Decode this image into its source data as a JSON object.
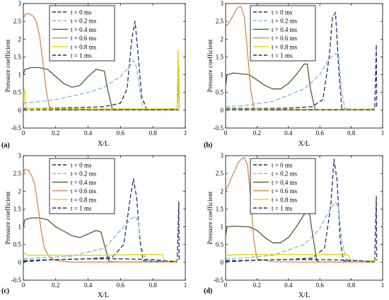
{
  "figure": {
    "legend_entries": [
      "t = 0 ms",
      "t = 0.2 ms",
      "t = 0.4 ms",
      "t = 0.6 ms",
      "t = 0.8 ms",
      "t = 1 ms"
    ]
  },
  "chart_data": [
    {
      "type": "line",
      "panel_label": "(a)",
      "xlabel": "X/L",
      "ylabel": "Pressure coefficient",
      "xlim": [
        0,
        1
      ],
      "ylim": [
        -0.5,
        3
      ],
      "xticks": [
        "0",
        "0.2",
        "0.4",
        "0.6",
        "0.8",
        "1"
      ],
      "yticks": [
        "-0.5",
        "0",
        "0.5",
        "1",
        "1.5",
        "2",
        "2.5",
        "3"
      ],
      "grid": false,
      "legend": "top-left",
      "series": [
        {
          "name": "t = 0 ms",
          "color": "#1f2f6b",
          "dash": "dashed",
          "x": [
            0,
            0.1,
            0.3,
            0.5,
            0.6,
            0.64,
            0.67,
            0.69,
            0.71,
            0.73,
            0.76,
            0.8,
            0.9,
            0.95,
            0.96,
            0.962
          ],
          "y": [
            0.05,
            0.05,
            0.07,
            0.1,
            0.2,
            0.6,
            2.0,
            2.5,
            1.5,
            0.4,
            0.03,
            0.03,
            0.03,
            0.05,
            1.0,
            0.05
          ]
        },
        {
          "name": "t = 0.2 ms",
          "color": "#7fb8d4",
          "dash": "dashed",
          "x": [
            0,
            0.05,
            0.2,
            0.4,
            0.5,
            0.6,
            0.65,
            0.68,
            0.7,
            0.72,
            0.74,
            0.8,
            0.9,
            0.95,
            0.96,
            0.962
          ],
          "y": [
            0.2,
            0.22,
            0.3,
            0.5,
            0.65,
            0.95,
            1.2,
            1.4,
            1.2,
            0.5,
            0.03,
            0.03,
            0.03,
            0.05,
            1.2,
            0.05
          ]
        },
        {
          "name": "t = 0.4 ms",
          "color": "#4d5e2f",
          "dash": "solid",
          "x": [
            0,
            0.01,
            0.05,
            0.1,
            0.15,
            0.2,
            0.25,
            0.3,
            0.35,
            0.4,
            0.45,
            0.5,
            0.52,
            0.55,
            0.6,
            0.8,
            0.95,
            0.962
          ],
          "y": [
            1.0,
            1.15,
            1.2,
            1.2,
            1.15,
            0.95,
            0.75,
            0.65,
            0.7,
            0.95,
            1.15,
            1.1,
            0.6,
            0.02,
            0.01,
            0.01,
            0.01,
            0.01
          ]
        },
        {
          "name": "t = 0.6 ms",
          "color": "#d2884e",
          "dash": "solid",
          "x": [
            0,
            0.01,
            0.03,
            0.06,
            0.08,
            0.1,
            0.12,
            0.14,
            0.16,
            0.2,
            0.3,
            0.5,
            0.7,
            0.9,
            0.95
          ],
          "y": [
            2.55,
            2.7,
            2.72,
            2.65,
            2.5,
            2.1,
            1.4,
            0.6,
            0.1,
            0.02,
            0.01,
            0.01,
            0.01,
            0.01,
            0.01
          ]
        },
        {
          "name": "t = 0.8 ms",
          "color": "#e5d400",
          "dash": "solid",
          "x": [
            0,
            0.005,
            0.01,
            0.02,
            0.1,
            0.3,
            0.5,
            0.7,
            0.9,
            0.95,
            0.955,
            0.962
          ],
          "y": [
            0.25,
            0.6,
            0.2,
            0.05,
            0.04,
            0.04,
            0.04,
            0.04,
            0.04,
            0.05,
            1.7,
            0.05
          ]
        },
        {
          "name": "t = 1 ms",
          "color": "#1f2f6b",
          "dash": "dashdot",
          "x": [
            0,
            0.2,
            0.5,
            0.8,
            0.95,
            0.96
          ],
          "y": [
            0.01,
            0.01,
            0.01,
            0.01,
            0.01,
            0.01
          ]
        }
      ]
    },
    {
      "type": "line",
      "panel_label": "(b)",
      "xlabel": "X/L",
      "ylabel": "Pressure coefficient",
      "xlim": [
        0,
        1
      ],
      "ylim": [
        -0.5,
        3
      ],
      "xticks": [
        "0",
        "0.2",
        "0.4",
        "0.6",
        "0.8",
        "1"
      ],
      "yticks": [
        "-0.5",
        "0",
        "0.5",
        "1",
        "1.5",
        "2",
        "2.5",
        "3"
      ],
      "grid": false,
      "legend": "top-right",
      "series": [
        {
          "name": "t = 0 ms",
          "color": "#1f2f6b",
          "dash": "dashed",
          "x": [
            0,
            0.2,
            0.4,
            0.55,
            0.62,
            0.66,
            0.68,
            0.7,
            0.72,
            0.74,
            0.8,
            0.9,
            0.95,
            0.96,
            0.962
          ],
          "y": [
            0.05,
            0.05,
            0.06,
            0.1,
            0.3,
            1.5,
            2.6,
            2.75,
            1.2,
            0.05,
            0.03,
            0.03,
            0.05,
            1.85,
            0.05
          ]
        },
        {
          "name": "t = 0.2 ms",
          "color": "#7fb8d4",
          "dash": "dashed",
          "x": [
            0,
            0.1,
            0.3,
            0.5,
            0.6,
            0.66,
            0.7,
            0.72,
            0.74,
            0.76,
            0.8,
            0.9,
            0.95
          ],
          "y": [
            0.1,
            0.12,
            0.25,
            0.6,
            1.0,
            1.45,
            1.6,
            1.5,
            0.5,
            0.05,
            0.03,
            0.03,
            0.05
          ]
        },
        {
          "name": "t = 0.4 ms",
          "color": "#4d5e2f",
          "dash": "solid",
          "x": [
            0,
            0.01,
            0.05,
            0.15,
            0.2,
            0.25,
            0.3,
            0.35,
            0.4,
            0.45,
            0.5,
            0.52,
            0.54,
            0.57,
            0.6,
            0.8,
            0.95
          ],
          "y": [
            0.7,
            1.0,
            1.05,
            1.0,
            0.85,
            0.7,
            0.6,
            0.6,
            0.75,
            1.0,
            1.3,
            1.3,
            0.6,
            0.02,
            0.01,
            0.01,
            0.01
          ]
        },
        {
          "name": "t = 0.6 ms",
          "color": "#d2884e",
          "dash": "solid",
          "x": [
            0,
            0.02,
            0.04,
            0.07,
            0.09,
            0.1,
            0.12,
            0.14,
            0.16,
            0.18,
            0.3,
            0.5,
            0.7,
            0.9,
            0.95
          ],
          "y": [
            2.35,
            2.45,
            2.6,
            2.85,
            2.92,
            2.9,
            2.6,
            1.6,
            0.6,
            0.05,
            0.01,
            0.01,
            0.01,
            0.01,
            0.01
          ]
        },
        {
          "name": "t = 0.8 ms",
          "color": "#e5d400",
          "dash": "solid",
          "x": [
            0,
            0.1,
            0.3,
            0.5,
            0.7,
            0.9,
            0.95
          ],
          "y": [
            0.03,
            0.03,
            0.03,
            0.03,
            0.03,
            0.03,
            0.04
          ]
        },
        {
          "name": "t = 1 ms",
          "color": "#1f2f6b",
          "dash": "dashdot",
          "x": [
            0,
            0.2,
            0.5,
            0.8,
            0.95
          ],
          "y": [
            0.01,
            0.01,
            0.01,
            0.01,
            0.01
          ]
        }
      ]
    },
    {
      "type": "line",
      "panel_label": "(c)",
      "xlabel": "X/L",
      "ylabel": "Pressure coefficient",
      "xlim": [
        0,
        1
      ],
      "ylim": [
        -0.5,
        3
      ],
      "xticks": [
        "0",
        "0.2",
        "0.4",
        "0.6",
        "0.8",
        "1"
      ],
      "yticks": [
        "-0.5",
        "0",
        "0.5",
        "1",
        "1.5",
        "2",
        "2.5",
        "3"
      ],
      "grid": false,
      "legend": "top-left",
      "series": [
        {
          "name": "t = 0 ms",
          "color": "#1f2f6b",
          "dash": "dashed",
          "x": [
            0,
            0.2,
            0.4,
            0.55,
            0.62,
            0.66,
            0.68,
            0.7,
            0.72,
            0.74,
            0.8,
            0.9,
            0.95,
            0.96,
            0.962
          ],
          "y": [
            0.05,
            0.08,
            0.1,
            0.15,
            0.5,
            1.8,
            2.35,
            1.8,
            0.6,
            0.05,
            0.03,
            0.03,
            0.05,
            1.7,
            0.05
          ]
        },
        {
          "name": "t = 0.2 ms",
          "color": "#7fb8d4",
          "dash": "dashed",
          "x": [
            0,
            0.1,
            0.3,
            0.5,
            0.6,
            0.66,
            0.69,
            0.71,
            0.73,
            0.76,
            0.8,
            0.9,
            0.95
          ],
          "y": [
            0.1,
            0.12,
            0.18,
            0.4,
            0.9,
            1.2,
            1.3,
            1.1,
            0.4,
            0.05,
            0.03,
            0.03,
            0.05
          ]
        },
        {
          "name": "t = 0.4 ms",
          "color": "#4d5e2f",
          "dash": "solid",
          "x": [
            0,
            0.01,
            0.05,
            0.1,
            0.15,
            0.2,
            0.3,
            0.35,
            0.4,
            0.45,
            0.48,
            0.5,
            0.53,
            0.6,
            0.8,
            0.95
          ],
          "y": [
            1.0,
            1.2,
            1.25,
            1.25,
            1.2,
            1.0,
            0.75,
            0.7,
            0.8,
            0.9,
            0.85,
            0.5,
            0.02,
            0.01,
            0.01,
            0.01
          ]
        },
        {
          "name": "t = 0.6 ms",
          "color": "#d2884e",
          "dash": "solid",
          "x": [
            0,
            0.01,
            0.03,
            0.05,
            0.07,
            0.09,
            0.11,
            0.13,
            0.16,
            0.2,
            0.3,
            0.5,
            0.7,
            0.9,
            0.95
          ],
          "y": [
            2.5,
            2.62,
            2.6,
            2.45,
            2.2,
            1.6,
            0.9,
            0.4,
            0.15,
            0.05,
            0.01,
            0.01,
            0.01,
            0.01,
            0.01
          ]
        },
        {
          "name": "t = 0.8 ms",
          "color": "#e5d400",
          "dash": "solid",
          "x": [
            0,
            0.02,
            0.1,
            0.3,
            0.5,
            0.7,
            0.86,
            0.87,
            0.9,
            0.95
          ],
          "y": [
            0.3,
            0.2,
            0.2,
            0.2,
            0.2,
            0.22,
            0.22,
            0.02,
            0.02,
            0.05
          ]
        },
        {
          "name": "t = 1 ms",
          "color": "#1f2f6b",
          "dash": "dashdot",
          "x": [
            0,
            0.2,
            0.4,
            0.6,
            0.8,
            0.9,
            0.95
          ],
          "y": [
            0.02,
            0.08,
            0.1,
            0.1,
            0.08,
            0.03,
            0.01
          ]
        }
      ]
    },
    {
      "type": "line",
      "panel_label": "(d)",
      "xlabel": "X/L",
      "ylabel": "Pressure coefficient",
      "xlim": [
        0,
        1
      ],
      "ylim": [
        -0.5,
        3
      ],
      "xticks": [
        "0",
        "0.2",
        "0.4",
        "0.6",
        "0.8",
        "1"
      ],
      "yticks": [
        "-0.5",
        "0",
        "0.5",
        "1",
        "1.5",
        "2",
        "2.5",
        "3"
      ],
      "grid": false,
      "legend": "top-right",
      "series": [
        {
          "name": "t = 0 ms",
          "color": "#1f2f6b",
          "dash": "dashed",
          "x": [
            0,
            0.2,
            0.4,
            0.55,
            0.63,
            0.67,
            0.69,
            0.71,
            0.73,
            0.75,
            0.8,
            0.9,
            0.95,
            0.96,
            0.962
          ],
          "y": [
            0.05,
            0.06,
            0.08,
            0.12,
            0.4,
            1.6,
            2.9,
            2.3,
            0.6,
            0.05,
            0.03,
            0.03,
            0.05,
            1.85,
            0.05
          ]
        },
        {
          "name": "t = 0.2 ms",
          "color": "#7fb8d4",
          "dash": "dashed",
          "x": [
            0,
            0.1,
            0.3,
            0.5,
            0.6,
            0.66,
            0.7,
            0.72,
            0.74,
            0.77,
            0.8,
            0.9,
            0.95
          ],
          "y": [
            0.1,
            0.12,
            0.2,
            0.5,
            0.95,
            1.45,
            1.7,
            1.5,
            0.6,
            0.05,
            0.03,
            0.03,
            0.05
          ]
        },
        {
          "name": "t = 0.4 ms",
          "color": "#4d5e2f",
          "dash": "solid",
          "x": [
            0,
            0.01,
            0.05,
            0.15,
            0.2,
            0.25,
            0.3,
            0.35,
            0.4,
            0.45,
            0.5,
            0.53,
            0.55,
            0.58,
            0.6,
            0.8,
            0.95
          ],
          "y": [
            0.75,
            1.0,
            1.02,
            1.0,
            0.9,
            0.7,
            0.55,
            0.55,
            0.7,
            1.0,
            1.35,
            1.5,
            0.9,
            0.05,
            0.01,
            0.01,
            0.01
          ]
        },
        {
          "name": "t = 0.6 ms",
          "color": "#d2884e",
          "dash": "solid",
          "x": [
            0,
            0.02,
            0.05,
            0.08,
            0.1,
            0.12,
            0.14,
            0.16,
            0.18,
            0.2,
            0.3,
            0.5,
            0.7,
            0.9,
            0.95
          ],
          "y": [
            2.0,
            2.2,
            2.5,
            2.8,
            2.9,
            2.95,
            2.7,
            1.8,
            0.6,
            0.1,
            0.02,
            0.01,
            0.01,
            0.01,
            0.01
          ]
        },
        {
          "name": "t = 0.8 ms",
          "color": "#e5d400",
          "dash": "solid",
          "x": [
            0,
            0.1,
            0.3,
            0.5,
            0.7,
            0.78,
            0.8,
            0.85,
            0.95
          ],
          "y": [
            0.2,
            0.22,
            0.22,
            0.22,
            0.22,
            0.22,
            0.03,
            0.02,
            0.05
          ]
        },
        {
          "name": "t = 1 ms",
          "color": "#1f2f6b",
          "dash": "dashdot",
          "x": [
            0,
            0.2,
            0.4,
            0.6,
            0.8,
            0.9,
            0.95
          ],
          "y": [
            0.02,
            0.06,
            0.08,
            0.08,
            0.06,
            0.03,
            0.01
          ]
        }
      ]
    }
  ]
}
